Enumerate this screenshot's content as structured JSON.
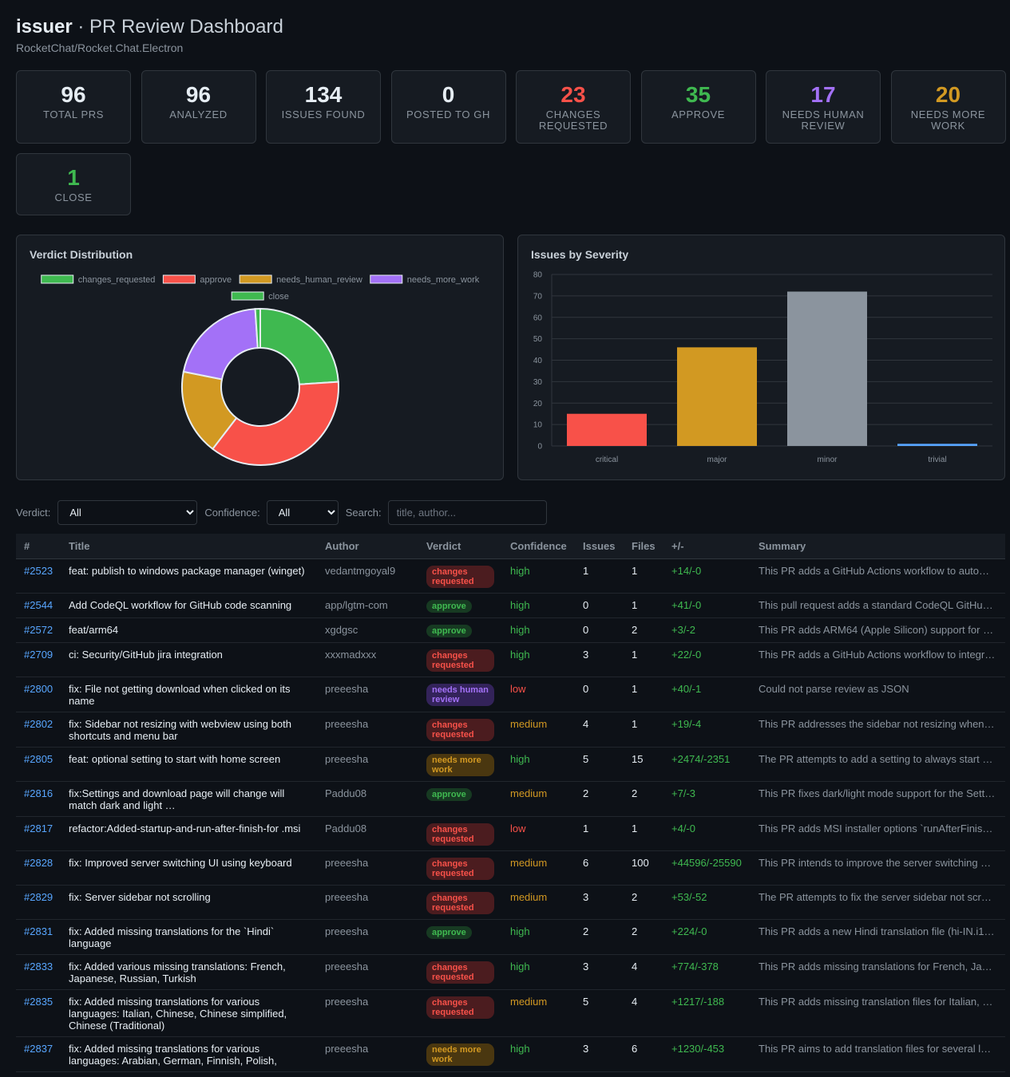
{
  "header": {
    "title": "issuer",
    "title_suffix": "· PR Review Dashboard",
    "repo": "RocketChat/Rocket.Chat.Electron"
  },
  "stats": [
    {
      "value": 96,
      "label": "TOTAL PRS",
      "color": "#e6edf3"
    },
    {
      "value": 96,
      "label": "ANALYZED",
      "color": "#e6edf3"
    },
    {
      "value": 134,
      "label": "ISSUES FOUND",
      "color": "#e6edf3"
    },
    {
      "value": 0,
      "label": "POSTED TO GH",
      "color": "#e6edf3"
    },
    {
      "value": 23,
      "label": "CHANGES REQUESTED",
      "color": "#f85149"
    },
    {
      "value": 35,
      "label": "APPROVE",
      "color": "#3fb950"
    },
    {
      "value": 17,
      "label": "NEEDS HUMAN REVIEW",
      "color": "#a371f7"
    },
    {
      "value": 20,
      "label": "NEEDS MORE WORK",
      "color": "#d29922"
    },
    {
      "value": 1,
      "label": "CLOSE",
      "color": "#3fb950"
    }
  ],
  "chart_data": [
    {
      "type": "doughnut",
      "title": "Verdict Distribution",
      "categories": [
        "changes_requested",
        "approve",
        "needs_human_review",
        "needs_more_work",
        "close"
      ],
      "values": [
        23,
        35,
        17,
        20,
        1
      ],
      "colors": [
        "#3fb950",
        "#f85149",
        "#d29922",
        "#a371f7",
        "#3fb950"
      ]
    },
    {
      "type": "bar",
      "title": "Issues by Severity",
      "categories": [
        "critical",
        "major",
        "minor",
        "trivial"
      ],
      "values": [
        15,
        46,
        72,
        1
      ],
      "colors": [
        "#f85149",
        "#d29922",
        "#8b949e",
        "#58a6ff"
      ],
      "ylim": [
        0,
        80
      ],
      "yticks": [
        0,
        10,
        20,
        30,
        40,
        50,
        60,
        70,
        80
      ],
      "grid": true
    }
  ],
  "filters": {
    "verdict_label": "Verdict:",
    "verdict_value": "All",
    "confidence_label": "Confidence:",
    "confidence_value": "All",
    "search_label": "Search:",
    "search_placeholder": "title, author..."
  },
  "verdict_styles": {
    "changes requested": {
      "color": "#f85149",
      "background": "#4b1c1f"
    },
    "approve": {
      "color": "#3fb950",
      "background": "#173a22"
    },
    "needs human review": {
      "color": "#a371f7",
      "background": "#33235a"
    },
    "needs more work": {
      "color": "#d29922",
      "background": "#4a3710"
    }
  },
  "confidence_colors": {
    "high": "#3fb950",
    "medium": "#d29922",
    "low": "#f85149"
  },
  "table": {
    "columns": [
      "#",
      "Title",
      "Author",
      "Verdict",
      "Confidence",
      "Issues",
      "Files",
      "+/-",
      "Summary"
    ],
    "rows": [
      [
        "#2523",
        "feat: publish to windows package manager (winget)",
        "vedantmgoyal9",
        "changes requested",
        "high",
        1,
        1,
        "+14/-0",
        "This PR adds a GitHub Actions workflow to auto…"
      ],
      [
        "#2544",
        "Add CodeQL workflow for GitHub code scanning",
        "app/lgtm-com",
        "approve",
        "high",
        0,
        1,
        "+41/-0",
        "This pull request adds a standard CodeQL GitHu…"
      ],
      [
        "#2572",
        "feat/arm64",
        "xgdgsc",
        "approve",
        "high",
        0,
        2,
        "+3/-2",
        "This PR adds ARM64 (Apple Silicon) support for …"
      ],
      [
        "#2709",
        "ci: Security/GitHub jira integration",
        "xxxmadxxx",
        "changes requested",
        "high",
        3,
        1,
        "+22/-0",
        "This PR adds a GitHub Actions workflow to integr…"
      ],
      [
        "#2800",
        "fix: File not getting download when clicked on its name",
        "preeesha",
        "needs human review",
        "low",
        0,
        1,
        "+40/-1",
        "Could not parse review as JSON"
      ],
      [
        "#2802",
        "fix: Sidebar not resizing with webview using both shortcuts and menu bar",
        "preeesha",
        "changes requested",
        "medium",
        4,
        1,
        "+19/-4",
        "This PR addresses the sidebar not resizing when…"
      ],
      [
        "#2805",
        "feat: optional setting to start with home screen",
        "preeesha",
        "needs more work",
        "high",
        5,
        15,
        "+2474/-2351",
        "The PR attempts to add a setting to always start …"
      ],
      [
        "#2816",
        "fix:Settings and download page will change will match dark and light …",
        "Paddu08",
        "approve",
        "medium",
        2,
        2,
        "+7/-3",
        "This PR fixes dark/light mode support for the Sett…"
      ],
      [
        "#2817",
        "refactor:Added-startup-and-run-after-finish-for .msi",
        "Paddu08",
        "changes requested",
        "low",
        1,
        1,
        "+4/-0",
        "This PR adds MSI installer options `runAfterFinis…"
      ],
      [
        "#2828",
        "fix: Improved server switching UI using keyboard",
        "preeesha",
        "changes requested",
        "medium",
        6,
        100,
        "+44596/-25590",
        "This PR intends to improve the server switching …"
      ],
      [
        "#2829",
        "fix: Server sidebar not scrolling",
        "preeesha",
        "changes requested",
        "medium",
        3,
        2,
        "+53/-52",
        "The PR attempts to fix the server sidebar not scr…"
      ],
      [
        "#2831",
        "fix: Added missing translations for the `Hindi` language",
        "preeesha",
        "approve",
        "high",
        2,
        2,
        "+224/-0",
        "This PR adds a new Hindi translation file (hi-IN.i1…"
      ],
      [
        "#2833",
        "fix: Added various missing translations: French, Japanese, Russian, Turkish",
        "preeesha",
        "changes requested",
        "high",
        3,
        4,
        "+774/-378",
        "This PR adds missing translations for French, Ja…"
      ],
      [
        "#2835",
        "fix: Added missing translations for various languages: Italian, Chinese, Chinese simplified, Chinese (Traditional)",
        "preeesha",
        "changes requested",
        "medium",
        5,
        4,
        "+1217/-188",
        "This PR adds missing translation files for Italian, …"
      ],
      [
        "#2837",
        "fix: Added missing translations for various languages: Arabian, German, Finnish, Polish,",
        "preeesha",
        "needs more work",
        "high",
        3,
        6,
        "+1230/-453",
        "This PR aims to add translation files for several l…"
      ]
    ]
  }
}
